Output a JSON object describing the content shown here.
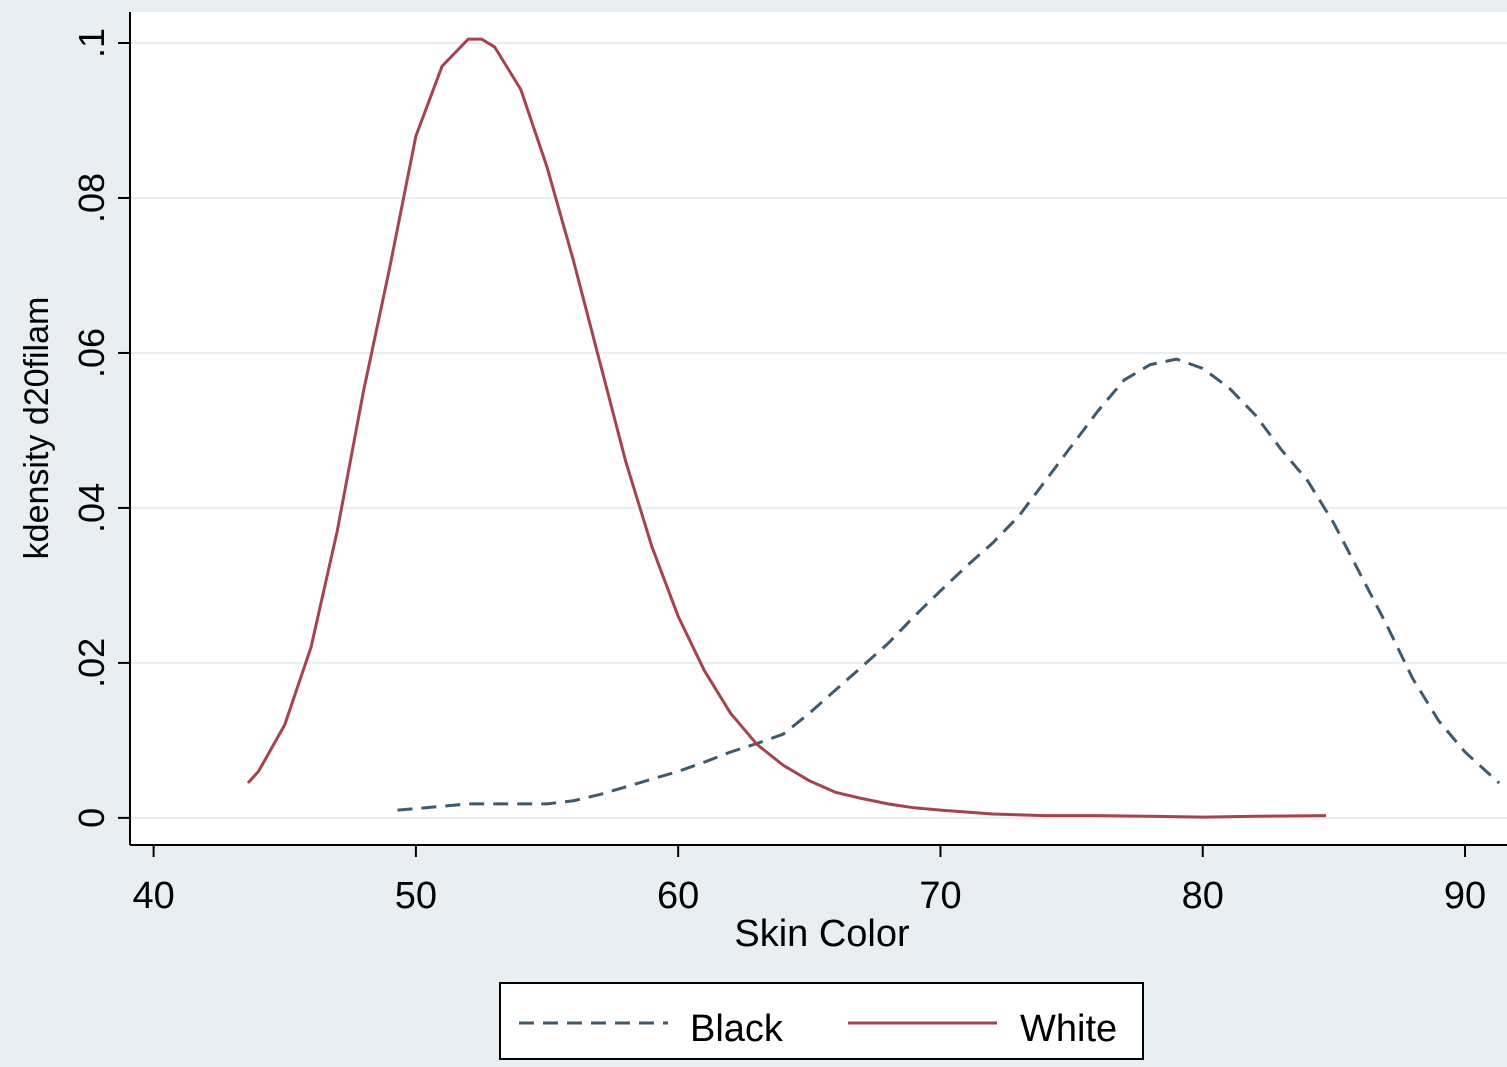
{
  "chart_data": {
    "type": "line",
    "xlabel": "Skin Color",
    "ylabel": "kdensity d20filam",
    "xlim": [
      39.1,
      91.6
    ],
    "ylim": [
      -0.0035,
      0.104
    ],
    "x_ticks": [
      40,
      50,
      60,
      70,
      80,
      90
    ],
    "x_tick_labels": [
      "40",
      "50",
      "60",
      "70",
      "80",
      "90"
    ],
    "y_ticks": [
      0,
      0.02,
      0.04,
      0.06,
      0.08,
      0.1
    ],
    "y_tick_labels": [
      "0",
      ".02",
      ".04",
      ".06",
      ".08",
      ".1"
    ],
    "grid": "horizontal",
    "legend_position": "bottom",
    "series": [
      {
        "name": "Black",
        "color": "#3d5a6e",
        "dash": "dashed",
        "x": [
          49.3,
          50,
          51,
          52,
          53,
          54,
          55,
          56,
          57,
          58,
          59,
          60,
          61,
          62,
          63,
          64,
          65,
          66,
          67,
          68,
          69,
          70,
          71,
          72,
          73,
          74,
          75,
          76,
          77,
          78,
          79,
          80,
          81,
          82,
          83,
          84,
          85,
          86,
          87,
          88,
          89,
          90,
          91.3
        ],
        "y": [
          0.001,
          0.0012,
          0.0015,
          0.0018,
          0.0018,
          0.0018,
          0.0018,
          0.0022,
          0.003,
          0.004,
          0.005,
          0.006,
          0.0072,
          0.0085,
          0.0096,
          0.0108,
          0.0135,
          0.0165,
          0.0195,
          0.0225,
          0.026,
          0.0293,
          0.0325,
          0.0355,
          0.039,
          0.0435,
          0.048,
          0.0525,
          0.0565,
          0.0585,
          0.0592,
          0.058,
          0.0555,
          0.052,
          0.0475,
          0.0435,
          0.038,
          0.0315,
          0.025,
          0.018,
          0.0125,
          0.0085,
          0.0045
        ]
      },
      {
        "name": "White",
        "color": "#a5444c",
        "dash": "solid",
        "x": [
          43.6,
          44,
          45,
          46,
          47,
          48,
          49,
          50,
          51,
          52,
          52.5,
          53,
          54,
          55,
          56,
          57,
          58,
          59,
          60,
          61,
          62,
          63,
          64,
          65,
          66,
          67,
          68,
          69,
          70,
          72,
          74,
          76,
          78,
          80,
          82,
          84.7
        ],
        "y": [
          0.0045,
          0.006,
          0.012,
          0.022,
          0.037,
          0.055,
          0.071,
          0.088,
          0.097,
          0.1005,
          0.1005,
          0.0995,
          0.094,
          0.084,
          0.072,
          0.059,
          0.046,
          0.035,
          0.026,
          0.019,
          0.0135,
          0.0095,
          0.0068,
          0.0048,
          0.0033,
          0.0025,
          0.0018,
          0.0013,
          0.001,
          0.0005,
          0.0003,
          0.0003,
          0.0002,
          0.0001,
          0.0002,
          0.0003
        ]
      }
    ]
  }
}
